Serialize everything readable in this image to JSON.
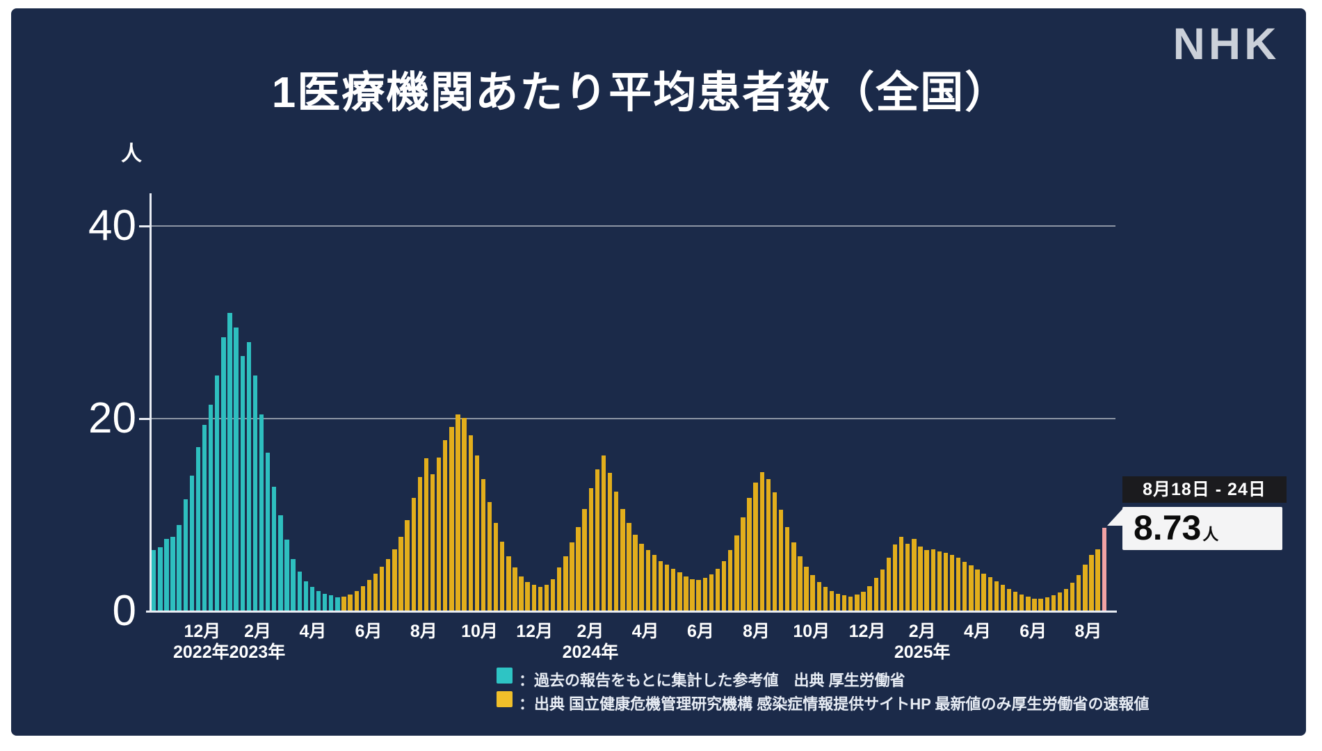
{
  "brand": "NHK",
  "title": "1医療機関あたり平均患者数（全国）",
  "y_axis": {
    "unit": "人",
    "ticks": [
      "40",
      "20",
      "0"
    ]
  },
  "callout": {
    "date_range": "8月18日 - 24日",
    "value": "8.73",
    "unit": "人"
  },
  "legend": [
    {
      "color": "#2ec4c4",
      "label": "：過去の報告をもとに集計した参考値　出典 厚生労働省"
    },
    {
      "color": "#f0bf2a",
      "label": "：出典 国立健康危機管理研究機構 感染症情報提供サイトHP 最新値のみ厚生労働省の速報値"
    }
  ],
  "chart_data": {
    "type": "bar",
    "title": "1医療機関あたり平均患者数（全国）",
    "ylabel": "人",
    "ylim": [
      0,
      43
    ],
    "gridlines": [
      20,
      40
    ],
    "grid": true,
    "legend_position": "bottom",
    "colors": {
      "reference": "#2ebfbf",
      "sentinel": "#e2ae1c",
      "latest": "#f2a2a4"
    },
    "teal_weeks": 30,
    "latest_week": {
      "label": "8月18日 - 24日",
      "value": 8.73
    },
    "x_labels": [
      {
        "text": "12月",
        "week": 7.65
      },
      {
        "text": "2月",
        "week": 16.4
      },
      {
        "text": "4月",
        "week": 25.1
      },
      {
        "text": "6月",
        "week": 33.9
      },
      {
        "text": "8月",
        "week": 42.6
      },
      {
        "text": "10月",
        "week": 51.4
      },
      {
        "text": "12月",
        "week": 60.1
      },
      {
        "text": "2月",
        "week": 68.9
      },
      {
        "text": "4月",
        "week": 77.6
      },
      {
        "text": "6月",
        "week": 86.3
      },
      {
        "text": "8月",
        "week": 95.1
      },
      {
        "text": "10月",
        "week": 103.8
      },
      {
        "text": "12月",
        "week": 112.6
      },
      {
        "text": "2月",
        "week": 121.3
      },
      {
        "text": "4月",
        "week": 130.0
      },
      {
        "text": "6月",
        "week": 138.8
      },
      {
        "text": "8月",
        "week": 147.5
      }
    ],
    "year_labels": [
      {
        "text": "2022年2023年",
        "week": 11.9
      },
      {
        "text": "2024年",
        "week": 68.9
      },
      {
        "text": "2025年",
        "week": 121.3
      }
    ],
    "weekly_values": [
      6.4,
      6.7,
      7.6,
      7.8,
      9.0,
      11.7,
      14.1,
      17.1,
      19.4,
      21.5,
      24.5,
      28.5,
      31.0,
      29.5,
      26.5,
      28.0,
      24.5,
      20.5,
      16.5,
      13.0,
      10.0,
      7.5,
      5.5,
      4.2,
      3.2,
      2.6,
      2.2,
      1.9,
      1.7,
      1.5,
      1.6,
      1.8,
      2.2,
      2.7,
      3.3,
      4.0,
      4.7,
      5.5,
      6.5,
      7.8,
      9.5,
      11.8,
      14.0,
      15.9,
      14.3,
      16.0,
      17.8,
      19.2,
      20.5,
      20.1,
      18.3,
      16.2,
      13.8,
      11.4,
      9.2,
      7.3,
      5.8,
      4.6,
      3.7,
      3.1,
      2.8,
      2.6,
      2.8,
      3.4,
      4.6,
      5.8,
      7.2,
      8.8,
      10.7,
      12.8,
      14.8,
      16.2,
      14.4,
      12.5,
      10.7,
      9.2,
      8.0,
      7.1,
      6.4,
      5.9,
      5.3,
      4.9,
      4.5,
      4.1,
      3.7,
      3.4,
      3.3,
      3.5,
      3.9,
      4.5,
      5.3,
      6.4,
      7.9,
      9.8,
      11.8,
      13.4,
      14.5,
      13.8,
      12.4,
      10.6,
      8.8,
      7.2,
      5.8,
      4.7,
      3.8,
      3.1,
      2.6,
      2.2,
      1.9,
      1.7,
      1.6,
      1.8,
      2.1,
      2.7,
      3.5,
      4.4,
      5.6,
      7.0,
      7.8,
      7.1,
      7.6,
      6.8,
      6.4,
      6.5,
      6.3,
      6.1,
      5.9,
      5.6,
      5.2,
      4.8,
      4.4,
      4.0,
      3.6,
      3.2,
      2.8,
      2.4,
      2.1,
      1.8,
      1.6,
      1.4,
      1.4,
      1.5,
      1.7,
      2.0,
      2.4,
      3.0,
      3.8,
      4.9,
      5.9,
      6.5,
      8.73
    ]
  }
}
